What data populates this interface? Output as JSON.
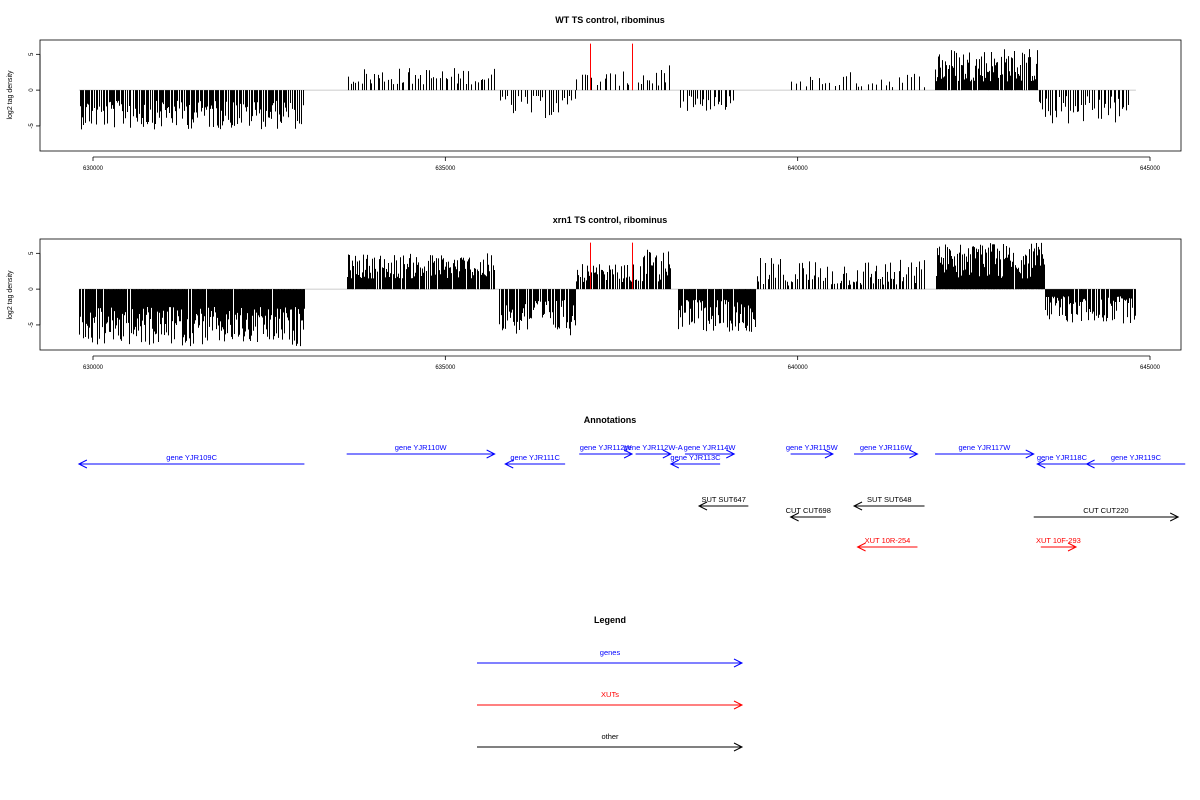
{
  "chart_data": [
    {
      "type": "bar",
      "title": "WT TS control, ribominus",
      "xlabel": "",
      "ylabel": "log2 tag density",
      "xlim": [
        629300,
        645500
      ],
      "ylim": [
        -8.5,
        7
      ],
      "x_ticks": [
        630000,
        635000,
        640000,
        645000
      ],
      "y_ticks": [
        -5,
        0,
        5
      ],
      "grid": false,
      "baseline_color": "#bbbbbb",
      "bar_color": "#000000",
      "highlight_color": "#ff0000",
      "highlights": [
        {
          "x": 637050,
          "y": 6.5
        },
        {
          "x": 637650,
          "y": 6.5
        }
      ],
      "segments": [
        {
          "x0": 629800,
          "x1": 633000,
          "min": 1.5,
          "max": 5.5,
          "sign": -1,
          "n": 180
        },
        {
          "x0": 633600,
          "x1": 635700,
          "min": 0.8,
          "max": 3.2,
          "sign": 1,
          "n": 55
        },
        {
          "x0": 635750,
          "x1": 636850,
          "min": 0.8,
          "max": 4.0,
          "sign": -1,
          "n": 30
        },
        {
          "x0": 636850,
          "x1": 637800,
          "min": 0.6,
          "max": 2.6,
          "sign": 1,
          "n": 18
        },
        {
          "x0": 637800,
          "x1": 638200,
          "min": 0.5,
          "max": 3.5,
          "sign": 1,
          "n": 10
        },
        {
          "x0": 638300,
          "x1": 639100,
          "min": 0.8,
          "max": 3.0,
          "sign": -1,
          "n": 25
        },
        {
          "x0": 639900,
          "x1": 640600,
          "min": 0.5,
          "max": 2.2,
          "sign": 1,
          "n": 12
        },
        {
          "x0": 640600,
          "x1": 641800,
          "min": 0.4,
          "max": 2.6,
          "sign": 1,
          "n": 20
        },
        {
          "x0": 641950,
          "x1": 643400,
          "min": 1.2,
          "max": 6.0,
          "sign": 1,
          "n": 110
        },
        {
          "x0": 643400,
          "x1": 644700,
          "min": 0.8,
          "max": 4.8,
          "sign": -1,
          "n": 45
        }
      ]
    },
    {
      "type": "bar",
      "title": "xrn1 TS control, ribominus",
      "xlabel": "",
      "ylabel": "log2 tag density",
      "xlim": [
        629300,
        645500
      ],
      "ylim": [
        -8.5,
        7
      ],
      "x_ticks": [
        630000,
        635000,
        640000,
        645000
      ],
      "y_ticks": [
        -5,
        0,
        5
      ],
      "grid": false,
      "baseline_color": "#bbbbbb",
      "bar_color": "#000000",
      "highlight_color": "#ff0000",
      "highlights": [
        {
          "x": 637050,
          "y": 6.5
        },
        {
          "x": 637650,
          "y": 6.5
        }
      ],
      "segments": [
        {
          "x0": 629800,
          "x1": 633000,
          "min": 2.5,
          "max": 8.0,
          "sign": -1,
          "n": 300
        },
        {
          "x0": 633600,
          "x1": 635700,
          "min": 1.5,
          "max": 5.0,
          "sign": 1,
          "n": 160
        },
        {
          "x0": 635750,
          "x1": 636850,
          "min": 1.5,
          "max": 6.5,
          "sign": -1,
          "n": 70
        },
        {
          "x0": 636850,
          "x1": 637800,
          "min": 1.0,
          "max": 3.5,
          "sign": 1,
          "n": 50
        },
        {
          "x0": 637800,
          "x1": 638200,
          "min": 1.0,
          "max": 5.5,
          "sign": 1,
          "n": 25
        },
        {
          "x0": 638300,
          "x1": 639400,
          "min": 1.5,
          "max": 6.0,
          "sign": -1,
          "n": 90
        },
        {
          "x0": 639400,
          "x1": 640600,
          "min": 0.5,
          "max": 4.5,
          "sign": 1,
          "n": 40
        },
        {
          "x0": 640600,
          "x1": 641800,
          "min": 0.5,
          "max": 4.2,
          "sign": 1,
          "n": 50
        },
        {
          "x0": 641950,
          "x1": 643500,
          "min": 1.5,
          "max": 6.5,
          "sign": 1,
          "n": 170
        },
        {
          "x0": 643500,
          "x1": 644800,
          "min": 1.0,
          "max": 4.8,
          "sign": -1,
          "n": 90
        }
      ]
    }
  ],
  "annotations": {
    "title": "Annotations",
    "items": [
      {
        "label": "gene YJR109C",
        "x0": 633000,
        "x1": 629800,
        "row": 1,
        "kind": "genes"
      },
      {
        "label": "gene YJR110W",
        "x0": 633600,
        "x1": 635700,
        "row": 0,
        "kind": "genes"
      },
      {
        "label": "gene YJR111C",
        "x0": 636700,
        "x1": 635850,
        "row": 1,
        "kind": "genes"
      },
      {
        "label": "gene YJR112W",
        "x0": 636900,
        "x1": 637650,
        "row": 0,
        "kind": "genes"
      },
      {
        "label": "gene YJR112W-A",
        "x0": 637700,
        "x1": 638200,
        "row": 0,
        "kind": "genes"
      },
      {
        "label": "gene YJR113C",
        "x0": 638900,
        "x1": 638200,
        "row": 1,
        "kind": "genes"
      },
      {
        "label": "gene YJR114W",
        "x0": 638400,
        "x1": 639100,
        "row": 0,
        "kind": "genes"
      },
      {
        "label": "gene YJR115W",
        "x0": 639900,
        "x1": 640500,
        "row": 0,
        "kind": "genes"
      },
      {
        "label": "gene YJR116W",
        "x0": 640800,
        "x1": 641700,
        "row": 0,
        "kind": "genes"
      },
      {
        "label": "gene YJR117W",
        "x0": 641950,
        "x1": 643350,
        "row": 0,
        "kind": "genes"
      },
      {
        "label": "gene YJR118C",
        "x0": 644100,
        "x1": 643400,
        "row": 1,
        "kind": "genes"
      },
      {
        "label": "gene YJR119C",
        "x0": 645500,
        "x1": 644100,
        "row": 1,
        "kind": "genes"
      },
      {
        "label": "SUT SUT647",
        "x0": 639300,
        "x1": 638600,
        "row": 3,
        "kind": "other"
      },
      {
        "label": "SUT SUT648",
        "x0": 641800,
        "x1": 640800,
        "row": 3,
        "kind": "other"
      },
      {
        "label": "CUT CUT698",
        "x0": 640400,
        "x1": 639900,
        "row": 4,
        "kind": "other"
      },
      {
        "label": "CUT CUT220",
        "x0": 643350,
        "x1": 645400,
        "row": 4,
        "kind": "other"
      },
      {
        "label": "XUT 10R-254",
        "x0": 641700,
        "x1": 640850,
        "row": 5,
        "kind": "xuts"
      },
      {
        "label": "XUT 10F-293",
        "x0": 643450,
        "x1": 643950,
        "row": 5,
        "kind": "xuts"
      }
    ]
  },
  "legend": {
    "title": "Legend",
    "entries": [
      {
        "label": "genes",
        "color": "#0000ff"
      },
      {
        "label": "XUTs",
        "color": "#ff0000"
      },
      {
        "label": "other",
        "color": "#000000"
      }
    ]
  },
  "colors": {
    "genes": "#0000ff",
    "xuts": "#ff0000",
    "other": "#000000",
    "axis": "#000000"
  }
}
